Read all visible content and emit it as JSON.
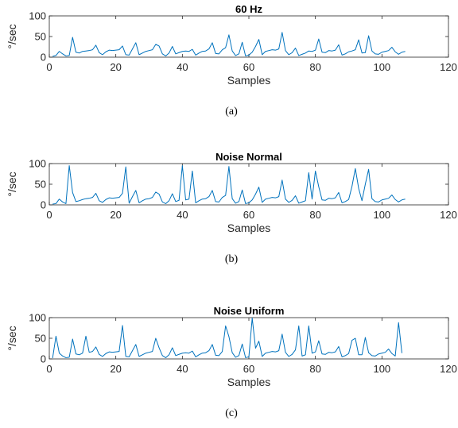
{
  "figure": {
    "series_color": "#0072BD",
    "x_ticks": [
      0,
      20,
      40,
      60,
      80,
      100,
      120
    ],
    "y_ticks": [
      0,
      50,
      100
    ]
  },
  "chart_data": [
    {
      "type": "line",
      "title": "60 Hz",
      "xlabel": "Samples",
      "ylabel": "°/sec",
      "caption": "(a)",
      "xlim": [
        0,
        120
      ],
      "ylim": [
        0,
        100
      ],
      "grid": false,
      "x_start": 1,
      "values": [
        2,
        4,
        14,
        8,
        3,
        4,
        48,
        12,
        10,
        14,
        15,
        16,
        18,
        29,
        11,
        6,
        13,
        17,
        16,
        17,
        18,
        27,
        6,
        5,
        20,
        35,
        6,
        10,
        14,
        16,
        18,
        31,
        27,
        8,
        3,
        10,
        26,
        8,
        11,
        14,
        15,
        14,
        19,
        5,
        10,
        14,
        15,
        20,
        35,
        9,
        8,
        18,
        23,
        54,
        15,
        4,
        8,
        36,
        3,
        5,
        12,
        26,
        43,
        6,
        14,
        16,
        18,
        17,
        20,
        60,
        16,
        6,
        11,
        22,
        4,
        7,
        10,
        15,
        14,
        17,
        44,
        12,
        11,
        16,
        15,
        17,
        30,
        5,
        8,
        13,
        15,
        18,
        42,
        10,
        11,
        52,
        15,
        8,
        7,
        12,
        14,
        16,
        24,
        13,
        7,
        12,
        14
      ]
    },
    {
      "type": "line",
      "title": "Noise Normal",
      "xlabel": "Samples",
      "ylabel": "°/sec",
      "caption": "(b)",
      "xlim": [
        0,
        120
      ],
      "ylim": [
        0,
        100
      ],
      "grid": false,
      "x_start": 1,
      "values": [
        2,
        3,
        14,
        7,
        3,
        95,
        30,
        8,
        10,
        13,
        15,
        16,
        18,
        28,
        10,
        6,
        13,
        17,
        16,
        17,
        18,
        28,
        92,
        4,
        20,
        35,
        5,
        10,
        14,
        15,
        18,
        31,
        26,
        7,
        3,
        10,
        27,
        8,
        11,
        95,
        12,
        14,
        82,
        5,
        10,
        14,
        15,
        20,
        35,
        8,
        7,
        18,
        23,
        93,
        15,
        4,
        8,
        36,
        3,
        5,
        12,
        26,
        43,
        6,
        14,
        16,
        18,
        17,
        20,
        60,
        14,
        6,
        11,
        22,
        4,
        7,
        10,
        78,
        14,
        82,
        44,
        12,
        11,
        16,
        15,
        17,
        30,
        5,
        8,
        13,
        45,
        88,
        40,
        10,
        50,
        86,
        15,
        8,
        7,
        12,
        14,
        16,
        24,
        13,
        7,
        12,
        14
      ]
    },
    {
      "type": "line",
      "title": "Noise Uniform",
      "xlabel": "Samples",
      "ylabel": "°/sec",
      "caption": "(c)",
      "xlim": [
        0,
        120
      ],
      "ylim": [
        0,
        100
      ],
      "grid": false,
      "x_start": 1,
      "values": [
        2,
        55,
        14,
        7,
        3,
        4,
        48,
        12,
        10,
        14,
        55,
        16,
        18,
        29,
        11,
        6,
        13,
        17,
        16,
        17,
        18,
        81,
        6,
        5,
        20,
        35,
        6,
        10,
        14,
        16,
        18,
        50,
        27,
        8,
        3,
        10,
        27,
        8,
        11,
        14,
        15,
        14,
        19,
        5,
        10,
        14,
        15,
        20,
        35,
        9,
        8,
        18,
        80,
        54,
        15,
        4,
        8,
        36,
        3,
        5,
        99,
        26,
        43,
        6,
        14,
        16,
        18,
        17,
        20,
        60,
        16,
        6,
        11,
        22,
        80,
        7,
        10,
        80,
        14,
        17,
        44,
        12,
        11,
        16,
        15,
        17,
        30,
        5,
        8,
        13,
        45,
        50,
        10,
        10,
        52,
        15,
        8,
        7,
        12,
        14,
        16,
        24,
        13,
        7,
        88,
        14
      ]
    }
  ]
}
